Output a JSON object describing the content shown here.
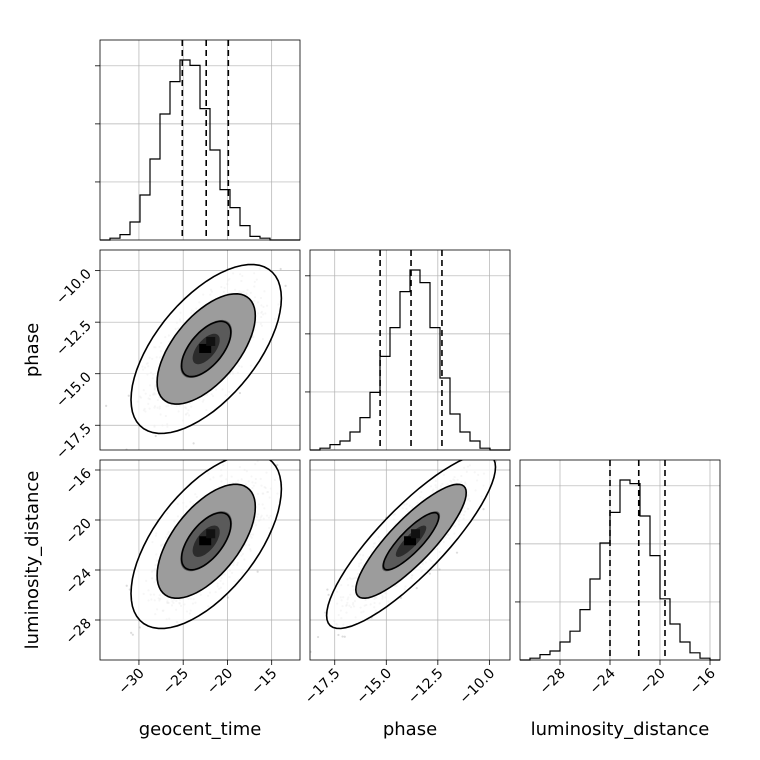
{
  "chart_data": {
    "type": "corner",
    "parameters": [
      {
        "name": "geocent_time",
        "label": "geocent_time",
        "range": [
          -34.4,
          -11.8
        ],
        "ticks": [
          -30,
          -25,
          -20,
          -15
        ],
        "tick_labels": [
          "−30",
          "−25",
          "−20",
          "−15"
        ],
        "quantiles": [
          -25.1,
          -22.4,
          -19.9
        ],
        "hist_bins": {
          "start": -34.4,
          "width": 1.13,
          "counts": [
            0,
            1,
            3,
            10,
            25,
            45,
            70,
            88,
            100,
            97,
            73,
            50,
            28,
            18,
            8,
            2,
            1,
            0,
            0,
            0
          ]
        }
      },
      {
        "name": "phase",
        "label": "phase",
        "range": [
          -18.7,
          -9.0
        ],
        "ticks": [
          -17.5,
          -15.0,
          -12.5,
          -10.0
        ],
        "tick_labels": [
          "−17.5",
          "−15.0",
          "−12.5",
          "−10.0"
        ],
        "quantiles": [
          -15.3,
          -13.8,
          -12.3
        ],
        "hist_bins": {
          "start": -18.7,
          "width": 0.485,
          "counts": [
            0,
            1,
            3,
            5,
            10,
            18,
            32,
            52,
            68,
            88,
            100,
            93,
            68,
            40,
            20,
            10,
            5,
            1,
            0,
            0
          ]
        }
      },
      {
        "name": "luminosity_distance",
        "label": "luminosity_distance",
        "range": [
          -31.2,
          -15.2
        ],
        "ticks": [
          -28,
          -24,
          -20,
          -16
        ],
        "tick_labels": [
          "−28",
          "−24",
          "−20",
          "−16"
        ],
        "quantiles": [
          -24.0,
          -21.7,
          -19.6
        ],
        "hist_bins": {
          "start": -31.2,
          "width": 0.8,
          "counts": [
            0,
            1,
            3,
            5,
            10,
            16,
            28,
            45,
            65,
            82,
            100,
            98,
            80,
            58,
            34,
            20,
            10,
            4,
            1,
            0
          ]
        }
      }
    ],
    "pairs": [
      {
        "x": "geocent_time",
        "y": "phase",
        "mean": [
          -22.4,
          -13.8
        ],
        "sd": [
          2.8,
          1.35
        ],
        "corr": 0.6
      },
      {
        "x": "geocent_time",
        "y": "luminosity_distance",
        "mean": [
          -22.4,
          -21.7
        ],
        "sd": [
          2.8,
          2.3
        ],
        "corr": 0.6
      },
      {
        "x": "phase",
        "y": "luminosity_distance",
        "mean": [
          -13.8,
          -21.7
        ],
        "sd": [
          1.35,
          2.3
        ],
        "corr": 0.85
      }
    ],
    "contour_levels": [
      0.39,
      0.86,
      0.99
    ],
    "grid": true,
    "title": ""
  }
}
